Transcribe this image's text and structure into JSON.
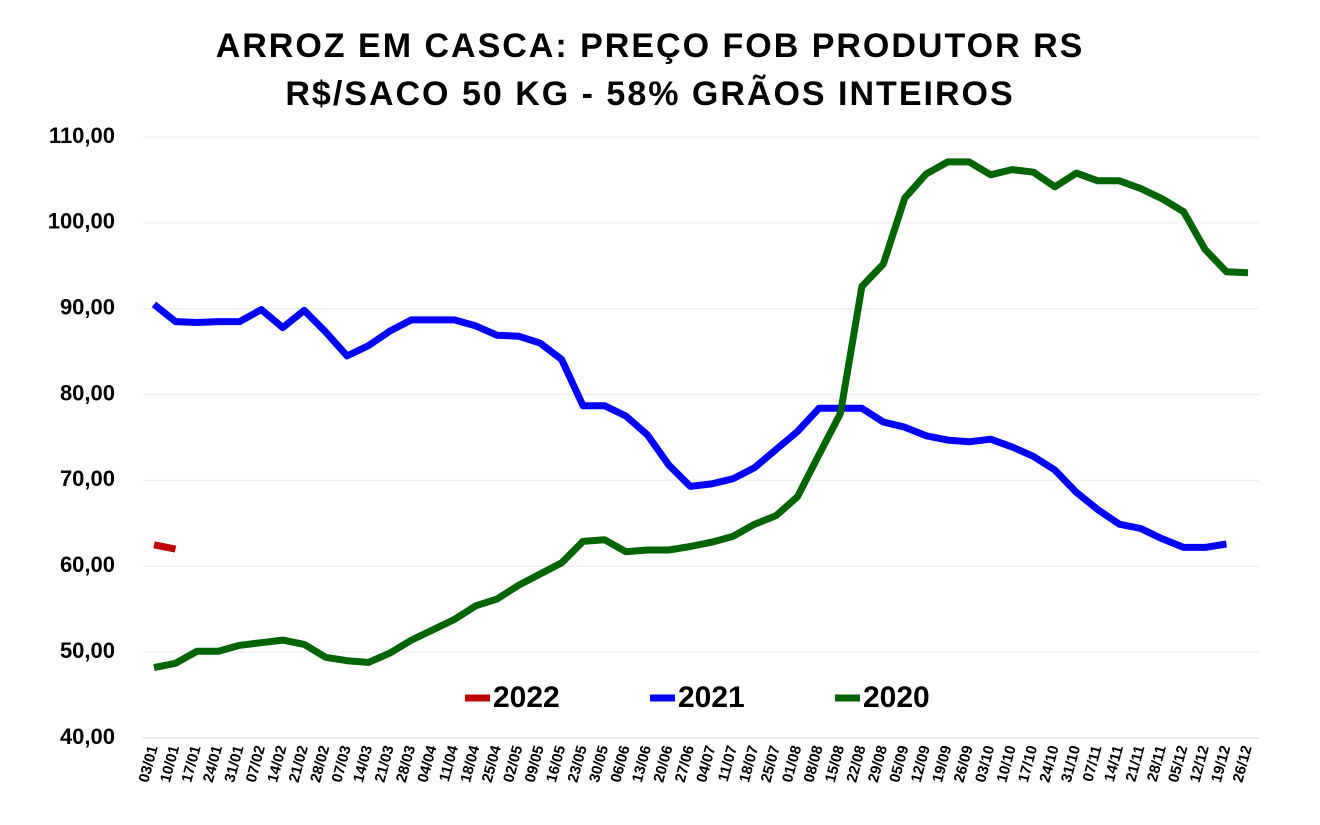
{
  "chart_data": {
    "type": "line",
    "title": "ARROZ EM CASCA: PREÇO FOB PRODUTOR RS",
    "subtitle": "R$/SACO 50 KG - 58% GRÃOS INTEIROS",
    "categories": [
      "03/01",
      "10/01",
      "17/01",
      "24/01",
      "31/01",
      "07/02",
      "14/02",
      "21/02",
      "28/02",
      "07/03",
      "14/03",
      "21/03",
      "28/03",
      "04/04",
      "11/04",
      "18/04",
      "25/04",
      "02/05",
      "09/05",
      "16/05",
      "23/05",
      "30/05",
      "06/06",
      "13/06",
      "20/06",
      "27/06",
      "04/07",
      "11/07",
      "18/07",
      "25/07",
      "01/08",
      "08/08",
      "15/08",
      "22/08",
      "29/08",
      "05/09",
      "12/09",
      "19/09",
      "26/09",
      "03/10",
      "10/10",
      "17/10",
      "24/10",
      "31/10",
      "07/11",
      "14/11",
      "21/11",
      "28/11",
      "05/12",
      "12/12",
      "19/12",
      "26/12"
    ],
    "series": [
      {
        "name": "2022",
        "color": "#c00000",
        "values": [
          62.5,
          62.0,
          null,
          null,
          null,
          null,
          null,
          null,
          null,
          null,
          null,
          null,
          null,
          null,
          null,
          null,
          null,
          null,
          null,
          null,
          null,
          null,
          null,
          null,
          null,
          null,
          null,
          null,
          null,
          null,
          null,
          null,
          null,
          null,
          null,
          null,
          null,
          null,
          null,
          null,
          null,
          null,
          null,
          null,
          null,
          null,
          null,
          null,
          null,
          null,
          null,
          null
        ]
      },
      {
        "name": "2021",
        "color": "#0000ff",
        "values": [
          90.5,
          88.5,
          88.4,
          88.5,
          88.5,
          89.9,
          87.8,
          89.8,
          87.3,
          84.5,
          85.7,
          87.4,
          88.7,
          88.7,
          88.7,
          88.0,
          86.9,
          86.8,
          86.0,
          84.1,
          78.7,
          78.7,
          77.5,
          75.3,
          71.8,
          69.3,
          69.6,
          70.2,
          71.5,
          73.6,
          75.7,
          78.4,
          78.4,
          78.4,
          76.8,
          76.2,
          75.2,
          74.7,
          74.5,
          74.8,
          73.9,
          72.8,
          71.2,
          68.6,
          66.6,
          64.9,
          64.4,
          63.2,
          62.2,
          62.2,
          62.6,
          null
        ]
      },
      {
        "name": "2020",
        "color": "#006400",
        "values": [
          48.2,
          48.7,
          50.1,
          50.1,
          50.8,
          51.1,
          51.4,
          50.9,
          49.4,
          49.0,
          48.8,
          49.9,
          51.4,
          52.6,
          53.8,
          55.4,
          56.2,
          57.8,
          59.1,
          60.4,
          62.9,
          63.1,
          61.7,
          61.9,
          61.9,
          62.3,
          62.8,
          63.5,
          64.9,
          65.9,
          68.1,
          73.0,
          77.8,
          92.6,
          95.2,
          102.9,
          105.7,
          107.1,
          107.1,
          105.6,
          106.2,
          105.9,
          104.2,
          105.8,
          104.9,
          104.9,
          104.0,
          102.8,
          101.3,
          96.9,
          94.3,
          94.2
        ]
      }
    ],
    "ylim": [
      40,
      110
    ],
    "yticks": [
      {
        "value": 40,
        "label": "40,00"
      },
      {
        "value": 50,
        "label": "50,00"
      },
      {
        "value": 60,
        "label": "60,00"
      },
      {
        "value": 70,
        "label": "70,00"
      },
      {
        "value": 80,
        "label": "80,00"
      },
      {
        "value": 90,
        "label": "90,00"
      },
      {
        "value": 100,
        "label": "100,00"
      },
      {
        "value": 110,
        "label": "110,00"
      }
    ],
    "grid": true,
    "legend": "bottom"
  }
}
